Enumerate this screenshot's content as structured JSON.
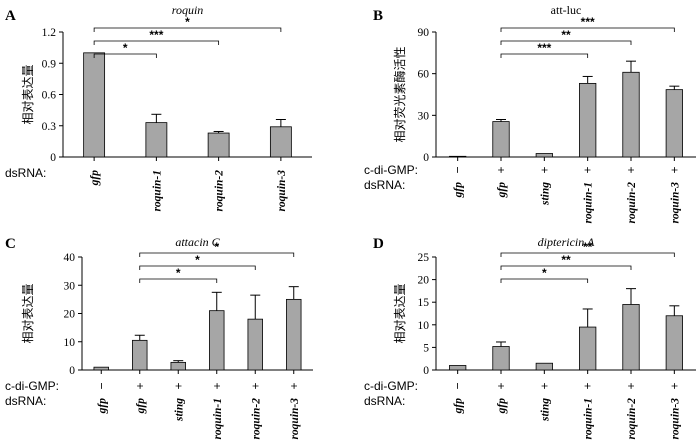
{
  "chart_data": [
    {
      "panel": "A",
      "type": "bar",
      "title": "roquin",
      "title_italic": true,
      "ylabel": "相对表达量",
      "ylim": [
        0,
        1.2
      ],
      "yticks": [
        "0",
        "0.3",
        "0.6",
        "0.9",
        "1.2"
      ],
      "row_labels": [
        "dsRNA:"
      ],
      "categories": [
        [
          "gfp"
        ],
        [
          "roquin-1"
        ],
        [
          "roquin-2"
        ],
        [
          "roquin-3"
        ]
      ],
      "values": [
        1.0,
        0.33,
        0.23,
        0.29
      ],
      "errors": [
        0,
        0.08,
        0.015,
        0.07
      ],
      "significance": [
        {
          "from": 0,
          "to": 1,
          "label": "*"
        },
        {
          "from": 0,
          "to": 2,
          "label": "***"
        },
        {
          "from": 0,
          "to": 3,
          "label": "*"
        }
      ]
    },
    {
      "panel": "B",
      "type": "bar",
      "title": "att-luc",
      "title_italic": false,
      "ylabel": "相对荧光素酶活性",
      "ylim": [
        0,
        90
      ],
      "yticks": [
        "0",
        "30",
        "60",
        "90"
      ],
      "row_labels": [
        "c-di-GMP:",
        "dsRNA:"
      ],
      "categories": [
        [
          "−",
          "gfp"
        ],
        [
          "+",
          "gfp"
        ],
        [
          "+",
          "sting"
        ],
        [
          "+",
          "roquin-1"
        ],
        [
          "+",
          "roquin-2"
        ],
        [
          "+",
          "roquin-3"
        ]
      ],
      "values": [
        0.5,
        25.5,
        2.5,
        53,
        61,
        48.5
      ],
      "errors": [
        0,
        1.5,
        0,
        5,
        8,
        2.5
      ],
      "significance": [
        {
          "from": 1,
          "to": 3,
          "label": "***"
        },
        {
          "from": 1,
          "to": 4,
          "label": "**"
        },
        {
          "from": 1,
          "to": 5,
          "label": "***"
        }
      ]
    },
    {
      "panel": "C",
      "type": "bar",
      "title": "attacin C",
      "title_italic": true,
      "ylabel": "相对表达量",
      "ylim": [
        0,
        40
      ],
      "yticks": [
        "0",
        "10",
        "20",
        "30",
        "40"
      ],
      "row_labels": [
        "c-di-GMP:",
        "dsRNA:"
      ],
      "categories": [
        [
          "−",
          "gfp"
        ],
        [
          "+",
          "gfp"
        ],
        [
          "+",
          "sting"
        ],
        [
          "+",
          "roquin-1"
        ],
        [
          "+",
          "roquin-2"
        ],
        [
          "+",
          "roquin-3"
        ]
      ],
      "values": [
        1,
        10.5,
        2.7,
        21,
        18,
        25
      ],
      "errors": [
        0,
        1.8,
        0.6,
        6.5,
        8.5,
        4.5
      ],
      "significance": [
        {
          "from": 1,
          "to": 3,
          "label": "*"
        },
        {
          "from": 1,
          "to": 4,
          "label": "*"
        },
        {
          "from": 1,
          "to": 5,
          "label": "*"
        }
      ]
    },
    {
      "panel": "D",
      "type": "bar",
      "title": "diptericin A",
      "title_italic": true,
      "ylabel": "相对表达量",
      "ylim": [
        0,
        25
      ],
      "yticks": [
        "0",
        "5",
        "10",
        "15",
        "20",
        "25"
      ],
      "row_labels": [
        "c-di-GMP:",
        "dsRNA:"
      ],
      "categories": [
        [
          "−",
          "gfp"
        ],
        [
          "+",
          "gfp"
        ],
        [
          "+",
          "sting"
        ],
        [
          "+",
          "roquin-1"
        ],
        [
          "+",
          "roquin-2"
        ],
        [
          "+",
          "roquin-3"
        ]
      ],
      "values": [
        1,
        5.2,
        1.5,
        9.5,
        14.5,
        12
      ],
      "errors": [
        0,
        1,
        0,
        4,
        3.5,
        2.2
      ],
      "significance": [
        {
          "from": 1,
          "to": 3,
          "label": "*"
        },
        {
          "from": 1,
          "to": 4,
          "label": "**"
        },
        {
          "from": 1,
          "to": 5,
          "label": "**"
        }
      ]
    }
  ]
}
